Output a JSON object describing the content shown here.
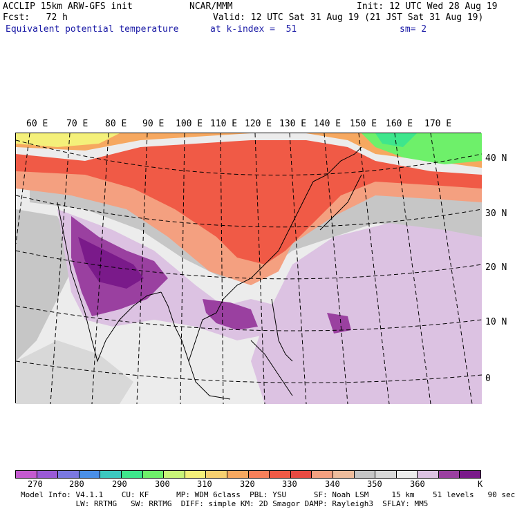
{
  "header": {
    "model_title": "ACCLIP 15km ARW-GFS init",
    "forecast": "Fcst:   72 h",
    "variable": "Equivalent potential temperature",
    "org": "NCAR/MMM",
    "init": "Init: 12 UTC Wed 28 Aug 19",
    "valid": "Valid: 12 UTC Sat 31 Aug 19 (21 JST Sat 31 Aug 19)",
    "level": "at k-index =  51",
    "smoothing": "sm= 2"
  },
  "map": {
    "longitude_labels": [
      "60 E",
      "70 E",
      "80 E",
      "90 E",
      "100 E",
      "110 E",
      "120 E",
      "130 E",
      "140 E",
      "150 E",
      "160 E",
      "170 E"
    ],
    "latitude_labels": [
      "40 N",
      "30 N",
      "20 N",
      "10 N",
      "0"
    ]
  },
  "colorbar": {
    "unit": "K",
    "tick_labels": [
      "270",
      "280",
      "290",
      "300",
      "310",
      "320",
      "330",
      "340",
      "350",
      "360"
    ],
    "colors": [
      "#c45ad0",
      "#9a5ad6",
      "#7a78e0",
      "#4a8fe6",
      "#3cc8c0",
      "#3ee68c",
      "#6ef06a",
      "#c8f478",
      "#f4f07a",
      "#f6d070",
      "#f6a860",
      "#f6805a",
      "#f05a46",
      "#e84a42",
      "#f4a080",
      "#eebc9c",
      "#c6c6c6",
      "#d8d8d8",
      "#ececec",
      "#dcc2e2",
      "#9a40a0",
      "#7a1a8a"
    ]
  },
  "footer": {
    "line1": "Model Info: V4.1.1    CU: KF      MP: WDM 6class  PBL: YSU      SF: Noah LSM     15 km    51 levels   90 sec",
    "line2": "            LW: RRTMG   SW: RRTMG  DIFF: simple KM: 2D Smagor DAMP: Rayleigh3  SFLAY: MM5"
  }
}
